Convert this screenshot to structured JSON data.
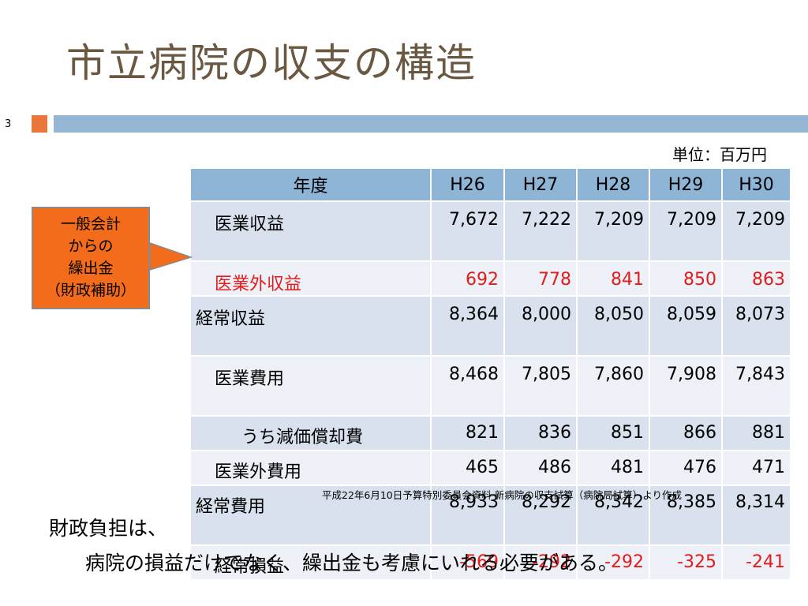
{
  "slide": {
    "title": "市立病院の収支の構造",
    "page_number": "3",
    "unit": "単位：百万円",
    "callout": [
      "一般会計",
      "からの",
      "繰出金",
      "（財政補助）"
    ],
    "source": "平成22年6月10日予算特別委員会資料 新病院の収支試算（病院局試算）より作成",
    "notes": [
      "財政負担は、",
      "病院の損益だけでなく、繰出金も考慮にいれる必要がある。"
    ]
  },
  "table": {
    "headers": [
      "年度",
      "H26",
      "H27",
      "H28",
      "H29",
      "H30"
    ],
    "rows": [
      {
        "label": "医業収益",
        "values": [
          "7,672",
          "7,222",
          "7,209",
          "7,209",
          "7,209"
        ]
      },
      {
        "label": "医業外収益",
        "values": [
          "692",
          "778",
          "841",
          "850",
          "863"
        ]
      },
      {
        "label": "経常収益",
        "values": [
          "8,364",
          "8,000",
          "8,050",
          "8,059",
          "8,073"
        ]
      },
      {
        "label": "医業費用",
        "values": [
          "8,468",
          "7,805",
          "7,860",
          "7,908",
          "7,843"
        ]
      },
      {
        "label": "うち減価償却費",
        "values": [
          "821",
          "836",
          "851",
          "866",
          "881"
        ]
      },
      {
        "label": "医業外費用",
        "values": [
          "465",
          "486",
          "481",
          "476",
          "471"
        ]
      },
      {
        "label": "経常費用",
        "values": [
          "8,933",
          "8,292",
          "8,342",
          "8,385",
          "8,314"
        ]
      },
      {
        "label": "経常損益",
        "values": [
          "-569",
          "-292",
          "-292",
          "-325",
          "-241"
        ]
      }
    ]
  },
  "colors": {
    "title": "#6b5840",
    "accent_orange": "#e9773a",
    "accent_blue": "#94b6d2",
    "callout_fill": "#f26c1c",
    "header_fill": "#8eb4d6",
    "row_odd": "#d8e1ed",
    "row_even": "#edf1f7",
    "negative_red": "#e21b1b"
  }
}
